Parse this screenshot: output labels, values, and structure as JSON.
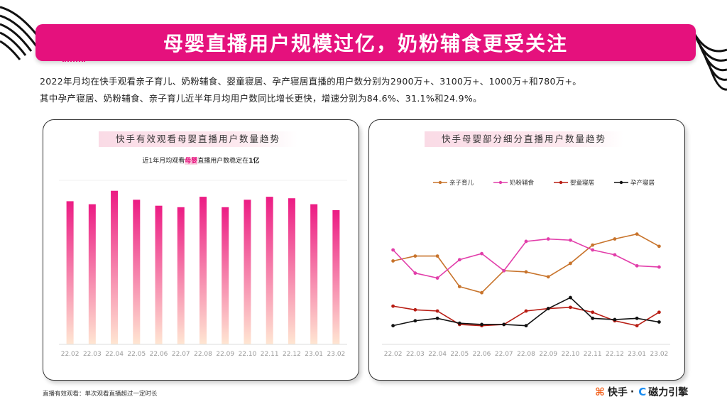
{
  "title": "母婴直播用户规模过亿，奶粉辅食更受关注",
  "summary_line1": "2022年月均在快手观看亲子育儿、奶粉辅食、婴童寝居、孕产寝居直播的用户数分别为2900万+、3100万+、1000万+和780万+。",
  "summary_line2": "其中孕产寝居、奶粉辅食、亲子育儿近半年月均用户数同比增长更快，增速分别为84.6%、31.1%和24.9%。",
  "footnote": "直播有效观看：单次观看直播超过一定时长",
  "brand": {
    "kuaishou": "快手",
    "sep": "·",
    "cili": "磁力引擎"
  },
  "colors": {
    "accent": "#e5117d"
  },
  "chart_data": [
    {
      "type": "bar",
      "title": "快手有效观看母婴直播用户数量趋势",
      "annotation_pre": "近1年月均观看",
      "annotation_hl": "母婴",
      "annotation_mid": "直播用户数稳定在",
      "annotation_end": "1亿",
      "categories": [
        "22.02",
        "22.03",
        "22.04",
        "22.05",
        "22.06",
        "22.07",
        "22.08",
        "22.09",
        "22.10",
        "22.11",
        "22.12",
        "23.01",
        "23.02"
      ],
      "values": [
        96,
        94,
        103,
        97,
        93,
        92,
        99,
        92,
        97,
        99,
        98,
        94,
        90
      ],
      "ylim": [
        0,
        110
      ],
      "gradient": [
        "#ec1c84",
        "#ffe6d2"
      ],
      "grid": false
    },
    {
      "type": "line",
      "title": "快手母婴部分细分直播用户数量趋势",
      "categories": [
        "22.02",
        "22.03",
        "22.04",
        "22.05",
        "22.06",
        "22.07",
        "22.08",
        "22.09",
        "22.10",
        "22.11",
        "22.12",
        "23.01",
        "23.02"
      ],
      "ylim": [
        0,
        100
      ],
      "legend_position": "top",
      "series": [
        {
          "name": "亲子育儿",
          "color": "#c8742c",
          "values": [
            66,
            70,
            70,
            45,
            40,
            58,
            57,
            53,
            64,
            79,
            84,
            88,
            78
          ]
        },
        {
          "name": "奶粉辅食",
          "color": "#e23eaa",
          "values": [
            75,
            56,
            52,
            67,
            72,
            58,
            82,
            84,
            83,
            75,
            71,
            62,
            61
          ]
        },
        {
          "name": "婴童寝居",
          "color": "#b81d14",
          "values": [
            29,
            26,
            25,
            14,
            13,
            14,
            25,
            27,
            28,
            24,
            17,
            13,
            24
          ]
        },
        {
          "name": "孕产寝居",
          "color": "#111111",
          "values": [
            13,
            17,
            19,
            15,
            14,
            14,
            13,
            27,
            36,
            19,
            18,
            19,
            16
          ]
        }
      ],
      "grid": false
    }
  ]
}
